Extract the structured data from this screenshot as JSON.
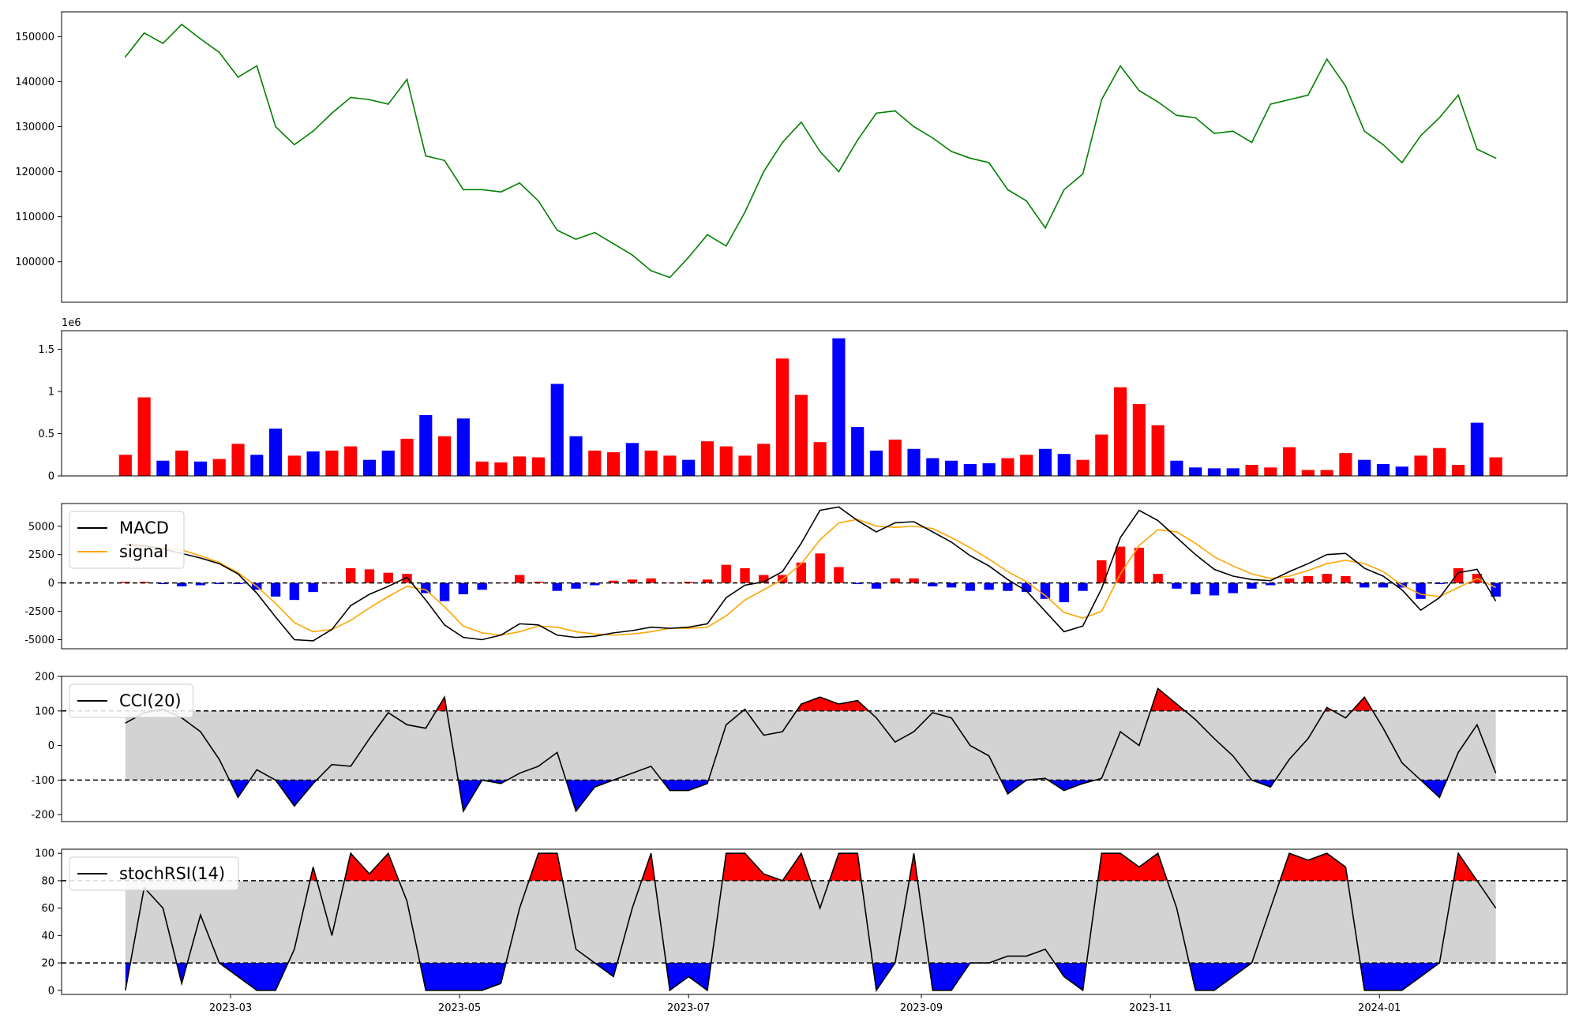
{
  "chart_data": [
    {
      "type": "line",
      "panel": "price",
      "series": [
        {
          "color": "#008000"
        }
      ],
      "x": [
        "2023-02-01",
        "2023-02-06",
        "2023-02-11",
        "2023-02-16",
        "2023-02-21",
        "2023-02-26",
        "2023-03-03",
        "2023-03-08",
        "2023-03-13",
        "2023-03-18",
        "2023-03-23",
        "2023-03-28",
        "2023-04-02",
        "2023-04-07",
        "2023-04-12",
        "2023-04-17",
        "2023-04-22",
        "2023-04-27",
        "2023-05-02",
        "2023-05-07",
        "2023-05-12",
        "2023-05-17",
        "2023-05-22",
        "2023-05-27",
        "2023-06-01",
        "2023-06-06",
        "2023-06-11",
        "2023-06-16",
        "2023-06-21",
        "2023-06-26",
        "2023-07-01",
        "2023-07-06",
        "2023-07-11",
        "2023-07-16",
        "2023-07-21",
        "2023-07-26",
        "2023-07-31",
        "2023-08-05",
        "2023-08-10",
        "2023-08-15",
        "2023-08-20",
        "2023-08-25",
        "2023-08-30",
        "2023-09-04",
        "2023-09-09",
        "2023-09-14",
        "2023-09-19",
        "2023-09-24",
        "2023-09-29",
        "2023-10-04",
        "2023-10-09",
        "2023-10-14",
        "2023-10-19",
        "2023-10-24",
        "2023-10-29",
        "2023-11-03",
        "2023-11-08",
        "2023-11-13",
        "2023-11-18",
        "2023-11-23",
        "2023-11-28",
        "2023-12-03",
        "2023-12-08",
        "2023-12-13",
        "2023-12-18",
        "2023-12-23",
        "2023-12-28",
        "2024-01-02",
        "2024-01-07",
        "2024-01-12",
        "2024-01-17",
        "2024-01-22",
        "2024-01-27",
        "2024-02-01"
      ],
      "values": [
        145500,
        150800,
        148500,
        152700,
        149500,
        146500,
        141000,
        143500,
        130000,
        126000,
        129000,
        133000,
        136500,
        136000,
        135000,
        140500,
        123500,
        122500,
        116000,
        116000,
        115500,
        117500,
        113500,
        107000,
        105000,
        106500,
        104000,
        101500,
        98000,
        96500,
        101000,
        106000,
        103500,
        111000,
        120000,
        126500,
        131000,
        124500,
        120000,
        127000,
        133000,
        133500,
        130000,
        127500,
        124500,
        123000,
        122000,
        116000,
        113500,
        107500,
        116000,
        119500,
        136000,
        143500,
        138000,
        135500,
        132500,
        132000,
        128500,
        129000,
        126500,
        135000,
        136000,
        137000,
        145000,
        139000,
        129000,
        126000,
        122000,
        128000,
        132000,
        137000,
        125000,
        123000
      ],
      "ylim": [
        91000,
        155500
      ],
      "yticks": [
        100000,
        110000,
        120000,
        130000,
        140000,
        150000
      ]
    },
    {
      "type": "bar",
      "panel": "volume",
      "offset_label": "1e6",
      "colors": {
        "up": "#ff0000",
        "down": "#0000ff"
      },
      "x": [
        "2023-02-01",
        "2023-02-06",
        "2023-02-11",
        "2023-02-16",
        "2023-02-21",
        "2023-02-26",
        "2023-03-03",
        "2023-03-08",
        "2023-03-13",
        "2023-03-18",
        "2023-03-23",
        "2023-03-28",
        "2023-04-02",
        "2023-04-07",
        "2023-04-12",
        "2023-04-17",
        "2023-04-22",
        "2023-04-27",
        "2023-05-02",
        "2023-05-07",
        "2023-05-12",
        "2023-05-17",
        "2023-05-22",
        "2023-05-27",
        "2023-06-01",
        "2023-06-06",
        "2023-06-11",
        "2023-06-16",
        "2023-06-21",
        "2023-06-26",
        "2023-07-01",
        "2023-07-06",
        "2023-07-11",
        "2023-07-16",
        "2023-07-21",
        "2023-07-26",
        "2023-07-31",
        "2023-08-05",
        "2023-08-10",
        "2023-08-15",
        "2023-08-20",
        "2023-08-25",
        "2023-08-30",
        "2023-09-04",
        "2023-09-09",
        "2023-09-14",
        "2023-09-19",
        "2023-09-24",
        "2023-09-29",
        "2023-10-04",
        "2023-10-09",
        "2023-10-14",
        "2023-10-19",
        "2023-10-24",
        "2023-10-29",
        "2023-11-03",
        "2023-11-08",
        "2023-11-13",
        "2023-11-18",
        "2023-11-23",
        "2023-11-28",
        "2023-12-03",
        "2023-12-08",
        "2023-12-13",
        "2023-12-18",
        "2023-12-23",
        "2023-12-28",
        "2024-01-02",
        "2024-01-07",
        "2024-01-12",
        "2024-01-17",
        "2024-01-22",
        "2024-01-27",
        "2024-02-01"
      ],
      "values": [
        0.25,
        0.93,
        0.18,
        0.3,
        0.17,
        0.2,
        0.38,
        0.25,
        0.56,
        0.24,
        0.29,
        0.3,
        0.35,
        0.19,
        0.3,
        0.44,
        0.72,
        0.47,
        0.68,
        0.17,
        0.16,
        0.23,
        0.22,
        1.09,
        0.47,
        0.3,
        0.28,
        0.39,
        0.3,
        0.24,
        0.19,
        0.41,
        0.35,
        0.24,
        0.38,
        1.39,
        0.96,
        0.4,
        1.63,
        0.58,
        0.3,
        0.43,
        0.32,
        0.21,
        0.18,
        0.14,
        0.15,
        0.21,
        0.25,
        0.32,
        0.26,
        0.19,
        0.49,
        1.05,
        0.85,
        0.6,
        0.18,
        0.1,
        0.09,
        0.09,
        0.13,
        0.1,
        0.34,
        0.07,
        0.07,
        0.27,
        0.19,
        0.14,
        0.11,
        0.24,
        0.33,
        0.13,
        0.63,
        0.22
      ],
      "dir": [
        "u",
        "u",
        "d",
        "u",
        "d",
        "u",
        "u",
        "d",
        "d",
        "u",
        "d",
        "u",
        "u",
        "d",
        "d",
        "u",
        "d",
        "u",
        "d",
        "u",
        "u",
        "u",
        "u",
        "d",
        "d",
        "u",
        "u",
        "d",
        "u",
        "u",
        "d",
        "u",
        "u",
        "u",
        "u",
        "u",
        "u",
        "u",
        "d",
        "d",
        "d",
        "u",
        "d",
        "d",
        "d",
        "d",
        "d",
        "u",
        "u",
        "d",
        "d",
        "u",
        "u",
        "u",
        "u",
        "u",
        "d",
        "d",
        "d",
        "d",
        "u",
        "u",
        "u",
        "u",
        "u",
        "u",
        "d",
        "d",
        "d",
        "u",
        "u",
        "u",
        "d",
        "u"
      ],
      "ylim": [
        0,
        1.72
      ],
      "yticks": [
        0.0,
        0.5,
        1.0,
        1.5
      ]
    },
    {
      "type": "line",
      "panel": "macd",
      "series": [
        {
          "name": "MACD",
          "color": "#000000",
          "values": [
            3400,
            3300,
            3000,
            2600,
            2200,
            1700,
            800,
            -900,
            -3000,
            -5000,
            -5100,
            -4100,
            -2000,
            -1000,
            -300,
            500,
            -1500,
            -3700,
            -4800,
            -5000,
            -4600,
            -3600,
            -3700,
            -4600,
            -4800,
            -4700,
            -4400,
            -4200,
            -3900,
            -4000,
            -3900,
            -3600,
            -1300,
            -200,
            100,
            1000,
            3500,
            6400,
            6700,
            5500,
            4500,
            5300,
            5400,
            4500,
            3600,
            2400,
            1500,
            300,
            -700,
            -2500,
            -4300,
            -3800,
            -500,
            4000,
            6400,
            5500,
            4000,
            2500,
            1200,
            600,
            300,
            200,
            1000,
            1700,
            2500,
            2600,
            1300,
            600,
            -600,
            -2400,
            -1300,
            900,
            1200,
            -1600
          ]
        },
        {
          "name": "signal",
          "color": "#ffa500",
          "values": [
            3300,
            3200,
            3100,
            2900,
            2400,
            1800,
            900,
            -300,
            -1800,
            -3500,
            -4300,
            -4100,
            -3300,
            -2200,
            -1200,
            -300,
            -600,
            -2100,
            -3800,
            -4400,
            -4600,
            -4300,
            -3800,
            -3900,
            -4300,
            -4500,
            -4600,
            -4500,
            -4300,
            -4000,
            -4000,
            -3900,
            -2900,
            -1500,
            -600,
            300,
            1700,
            3800,
            5300,
            5600,
            5000,
            4900,
            5000,
            4800,
            4000,
            3100,
            2100,
            1000,
            100,
            -1100,
            -2600,
            -3100,
            -2500,
            800,
            3300,
            4700,
            4500,
            3500,
            2300,
            1500,
            800,
            400,
            600,
            1100,
            1700,
            2000,
            1700,
            1000,
            -200,
            -1000,
            -1200,
            -400,
            400,
            -400
          ]
        }
      ],
      "hist_colors": {
        "pos": "#ff0000",
        "neg": "#0000ff"
      },
      "x": [
        "2023-02-01",
        "2023-02-06",
        "2023-02-11",
        "2023-02-16",
        "2023-02-21",
        "2023-02-26",
        "2023-03-03",
        "2023-03-08",
        "2023-03-13",
        "2023-03-18",
        "2023-03-23",
        "2023-03-28",
        "2023-04-02",
        "2023-04-07",
        "2023-04-12",
        "2023-04-17",
        "2023-04-22",
        "2023-04-27",
        "2023-05-02",
        "2023-05-07",
        "2023-05-12",
        "2023-05-17",
        "2023-05-22",
        "2023-05-27",
        "2023-06-01",
        "2023-06-06",
        "2023-06-11",
        "2023-06-16",
        "2023-06-21",
        "2023-06-26",
        "2023-07-01",
        "2023-07-06",
        "2023-07-11",
        "2023-07-16",
        "2023-07-21",
        "2023-07-26",
        "2023-07-31",
        "2023-08-05",
        "2023-08-10",
        "2023-08-15",
        "2023-08-20",
        "2023-08-25",
        "2023-08-30",
        "2023-09-04",
        "2023-09-09",
        "2023-09-14",
        "2023-09-19",
        "2023-09-24",
        "2023-09-29",
        "2023-10-04",
        "2023-10-09",
        "2023-10-14",
        "2023-10-19",
        "2023-10-24",
        "2023-10-29",
        "2023-11-03",
        "2023-11-08",
        "2023-11-13",
        "2023-11-18",
        "2023-11-23",
        "2023-11-28",
        "2023-12-03",
        "2023-12-08",
        "2023-12-13",
        "2023-12-18",
        "2023-12-23",
        "2023-12-28",
        "2024-01-02",
        "2024-01-07",
        "2024-01-12",
        "2024-01-17",
        "2024-01-22",
        "2024-01-27",
        "2024-02-01"
      ],
      "ylim": [
        -5800,
        7000
      ],
      "yticks": [
        -5000,
        -2500,
        0,
        2500,
        5000
      ],
      "hline": 0,
      "legend": "upper-left"
    },
    {
      "type": "line",
      "panel": "cci",
      "series": [
        {
          "name": "CCI(20)",
          "color": "#000000",
          "values": [
            65,
            95,
            105,
            80,
            40,
            -40,
            -150,
            -70,
            -100,
            -175,
            -110,
            -55,
            -60,
            20,
            95,
            60,
            50,
            140,
            -190,
            -100,
            -110,
            -80,
            -60,
            -20,
            -190,
            -120,
            -100,
            -80,
            -60,
            -130,
            -130,
            -110,
            60,
            105,
            30,
            40,
            120,
            140,
            120,
            130,
            80,
            10,
            40,
            95,
            80,
            0,
            -30,
            -140,
            -100,
            -95,
            -130,
            -110,
            -95,
            40,
            0,
            165,
            120,
            75,
            20,
            -30,
            -100,
            -120,
            -40,
            20,
            110,
            80,
            140,
            50,
            -50,
            -100,
            -150,
            -20,
            60,
            -80
          ]
        }
      ],
      "x": [
        "2023-02-01",
        "2023-02-06",
        "2023-02-11",
        "2023-02-16",
        "2023-02-21",
        "2023-02-26",
        "2023-03-03",
        "2023-03-08",
        "2023-03-13",
        "2023-03-18",
        "2023-03-23",
        "2023-03-28",
        "2023-04-02",
        "2023-04-07",
        "2023-04-12",
        "2023-04-17",
        "2023-04-22",
        "2023-04-27",
        "2023-05-02",
        "2023-05-07",
        "2023-05-12",
        "2023-05-17",
        "2023-05-22",
        "2023-05-27",
        "2023-06-01",
        "2023-06-06",
        "2023-06-11",
        "2023-06-16",
        "2023-06-21",
        "2023-06-26",
        "2023-07-01",
        "2023-07-06",
        "2023-07-11",
        "2023-07-16",
        "2023-07-21",
        "2023-07-26",
        "2023-07-31",
        "2023-08-05",
        "2023-08-10",
        "2023-08-15",
        "2023-08-20",
        "2023-08-25",
        "2023-08-30",
        "2023-09-04",
        "2023-09-09",
        "2023-09-14",
        "2023-09-19",
        "2023-09-24",
        "2023-09-29",
        "2023-10-04",
        "2023-10-09",
        "2023-10-14",
        "2023-10-19",
        "2023-10-24",
        "2023-10-29",
        "2023-11-03",
        "2023-11-08",
        "2023-11-13",
        "2023-11-18",
        "2023-11-23",
        "2023-11-28",
        "2023-12-03",
        "2023-12-08",
        "2023-12-13",
        "2023-12-18",
        "2023-12-23",
        "2023-12-28",
        "2024-01-02",
        "2024-01-07",
        "2024-01-12",
        "2024-01-17",
        "2024-01-22",
        "2024-01-27",
        "2024-02-01"
      ],
      "band": [
        -100,
        100
      ],
      "fill_colors": {
        "band": "#d3d3d3",
        "above": "#ff0000",
        "below": "#0000ff"
      },
      "ylim": [
        -220,
        200
      ],
      "yticks": [
        -200,
        -100,
        0,
        100,
        200
      ],
      "legend": "upper-left"
    },
    {
      "type": "line",
      "panel": "stochrsi",
      "series": [
        {
          "name": "stochRSI(14)",
          "color": "#000000",
          "values": [
            0,
            75,
            60,
            5,
            55,
            20,
            10,
            0,
            0,
            30,
            90,
            40,
            100,
            85,
            100,
            65,
            0,
            0,
            0,
            0,
            5,
            60,
            100,
            100,
            30,
            20,
            10,
            60,
            100,
            0,
            10,
            0,
            100,
            100,
            85,
            80,
            100,
            60,
            100,
            100,
            0,
            20,
            100,
            0,
            0,
            20,
            20,
            25,
            25,
            30,
            10,
            0,
            100,
            100,
            90,
            100,
            60,
            0,
            0,
            10,
            20,
            60,
            100,
            95,
            100,
            90,
            0,
            0,
            0,
            10,
            20,
            100,
            80,
            60
          ]
        }
      ],
      "x": [
        "2023-02-01",
        "2023-02-06",
        "2023-02-11",
        "2023-02-16",
        "2023-02-21",
        "2023-02-26",
        "2023-03-03",
        "2023-03-08",
        "2023-03-13",
        "2023-03-18",
        "2023-03-23",
        "2023-03-28",
        "2023-04-02",
        "2023-04-07",
        "2023-04-12",
        "2023-04-17",
        "2023-04-22",
        "2023-04-27",
        "2023-05-02",
        "2023-05-07",
        "2023-05-12",
        "2023-05-17",
        "2023-05-22",
        "2023-05-27",
        "2023-06-01",
        "2023-06-06",
        "2023-06-11",
        "2023-06-16",
        "2023-06-21",
        "2023-06-26",
        "2023-07-01",
        "2023-07-06",
        "2023-07-11",
        "2023-07-16",
        "2023-07-21",
        "2023-07-26",
        "2023-07-31",
        "2023-08-05",
        "2023-08-10",
        "2023-08-15",
        "2023-08-20",
        "2023-08-25",
        "2023-08-30",
        "2023-09-04",
        "2023-09-09",
        "2023-09-14",
        "2023-09-19",
        "2023-09-24",
        "2023-09-29",
        "2023-10-04",
        "2023-10-09",
        "2023-10-14",
        "2023-10-19",
        "2023-10-24",
        "2023-10-29",
        "2023-11-03",
        "2023-11-08",
        "2023-11-13",
        "2023-11-18",
        "2023-11-23",
        "2023-11-28",
        "2023-12-03",
        "2023-12-08",
        "2023-12-13",
        "2023-12-18",
        "2023-12-23",
        "2023-12-28",
        "2024-01-02",
        "2024-01-07",
        "2024-01-12",
        "2024-01-17",
        "2024-01-22",
        "2024-01-27",
        "2024-02-01"
      ],
      "band": [
        20,
        80
      ],
      "fill_colors": {
        "band": "#d3d3d3",
        "above": "#ff0000",
        "below": "#0000ff"
      },
      "ylim": [
        -3,
        103
      ],
      "yticks": [
        0,
        20,
        40,
        60,
        80,
        100
      ],
      "legend": "upper-left"
    }
  ],
  "shared_x_axis": {
    "xlim": [
      "2023-01-15",
      "2024-02-20"
    ],
    "tick_dates": [
      "2023-03-01",
      "2023-05-01",
      "2023-07-01",
      "2023-09-01",
      "2023-11-01",
      "2024-01-01"
    ],
    "tick_labels": [
      "2023-03",
      "2023-05",
      "2023-07",
      "2023-09",
      "2023-11",
      "2024-01"
    ]
  }
}
